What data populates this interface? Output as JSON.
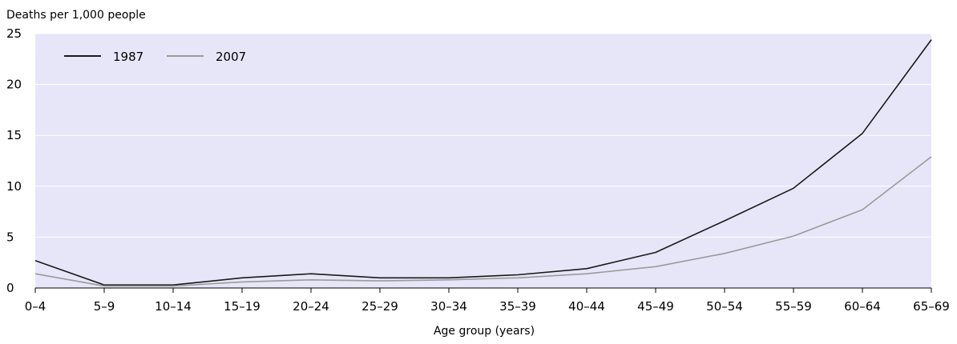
{
  "chart_data": {
    "type": "line",
    "title": "",
    "ylabel": "Deaths per 1,000 people",
    "xlabel": "Age group (years)",
    "categories": [
      "0–4",
      "5–9",
      "10–14",
      "15–19",
      "20–24",
      "25–29",
      "30–34",
      "35–39",
      "40–44",
      "45–49",
      "50–54",
      "55–59",
      "60–64",
      "65–69"
    ],
    "ylim": [
      0,
      25
    ],
    "yticks": [
      "0",
      "5",
      "10",
      "15",
      "20",
      "25"
    ],
    "grid": true,
    "legend_position": "top-left",
    "plot_background": "#e6e6f8",
    "series": [
      {
        "name": "1987",
        "color": "#1a1a1a",
        "values": [
          2.7,
          0.3,
          0.3,
          1.0,
          1.4,
          1.0,
          1.0,
          1.3,
          1.9,
          3.5,
          6.6,
          9.8,
          15.2,
          24.4
        ]
      },
      {
        "name": "2007",
        "color": "#9a9a9a",
        "values": [
          1.4,
          0.2,
          0.2,
          0.6,
          0.8,
          0.7,
          0.8,
          1.0,
          1.4,
          2.1,
          3.4,
          5.1,
          7.7,
          12.9
        ]
      }
    ]
  }
}
